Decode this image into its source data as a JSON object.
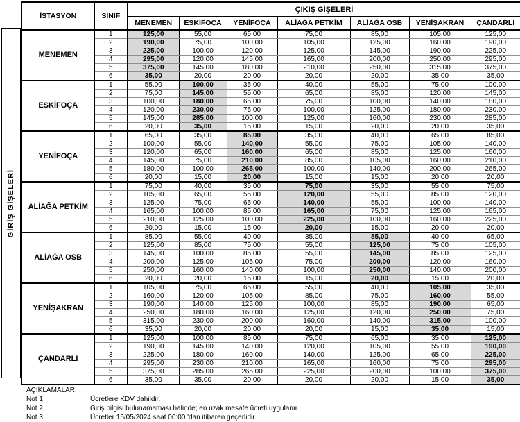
{
  "header": {
    "exit_gates_label": "ÇIKIŞ GİŞELERİ",
    "entry_gates_label": "GİRİŞ GİŞELERİ",
    "station_label": "İSTASYON",
    "class_label": "SINIF"
  },
  "columns": [
    "MENEMEN",
    "ESKİFOÇA",
    "YENİFOÇA",
    "ALİAĞA PETKİM",
    "ALİAĞA OSB",
    "YENİŞAKRAN",
    "ÇANDARLI"
  ],
  "class_labels": [
    "1",
    "2",
    "3",
    "4",
    "5",
    "6"
  ],
  "stations": [
    {
      "name": "MENEMEN",
      "fares": [
        [
          "125,00",
          "55,00",
          "65,00",
          "75,00",
          "85,00",
          "105,00",
          "125,00"
        ],
        [
          "190,00",
          "75,00",
          "100,00",
          "105,00",
          "125,00",
          "160,00",
          "190,00"
        ],
        [
          "225,00",
          "100,00",
          "120,00",
          "125,00",
          "145,00",
          "190,00",
          "225,00"
        ],
        [
          "295,00",
          "120,00",
          "145,00",
          "165,00",
          "200,00",
          "250,00",
          "295,00"
        ],
        [
          "375,00",
          "145,00",
          "180,00",
          "210,00",
          "250,00",
          "315,00",
          "375,00"
        ],
        [
          "35,00",
          "20,00",
          "20,00",
          "20,00",
          "20,00",
          "35,00",
          "35,00"
        ]
      ]
    },
    {
      "name": "ESKİFOÇA",
      "fares": [
        [
          "55,00",
          "100,00",
          "35,00",
          "40,00",
          "55,00",
          "75,00",
          "100,00"
        ],
        [
          "75,00",
          "145,00",
          "55,00",
          "65,00",
          "85,00",
          "120,00",
          "145,00"
        ],
        [
          "100,00",
          "180,00",
          "65,00",
          "75,00",
          "100,00",
          "140,00",
          "180,00"
        ],
        [
          "120,00",
          "230,00",
          "75,00",
          "100,00",
          "125,00",
          "180,00",
          "230,00"
        ],
        [
          "145,00",
          "285,00",
          "100,00",
          "125,00",
          "160,00",
          "230,00",
          "285,00"
        ],
        [
          "20,00",
          "35,00",
          "15,00",
          "15,00",
          "20,00",
          "20,00",
          "35,00"
        ]
      ]
    },
    {
      "name": "YENİFOÇA",
      "fares": [
        [
          "65,00",
          "35,00",
          "85,00",
          "35,00",
          "40,00",
          "65,00",
          "85,00"
        ],
        [
          "100,00",
          "55,00",
          "140,00",
          "55,00",
          "75,00",
          "105,00",
          "140,00"
        ],
        [
          "120,00",
          "65,00",
          "160,00",
          "65,00",
          "85,00",
          "125,00",
          "160,00"
        ],
        [
          "145,00",
          "75,00",
          "210,00",
          "85,00",
          "105,00",
          "160,00",
          "210,00"
        ],
        [
          "180,00",
          "100,00",
          "265,00",
          "100,00",
          "140,00",
          "200,00",
          "265,00"
        ],
        [
          "20,00",
          "15,00",
          "20,00",
          "15,00",
          "15,00",
          "20,00",
          "20,00"
        ]
      ]
    },
    {
      "name": "ALİAĞA\nPETKİM",
      "fares": [
        [
          "75,00",
          "40,00",
          "35,00",
          "75,00",
          "35,00",
          "55,00",
          "75,00"
        ],
        [
          "105,00",
          "65,00",
          "55,00",
          "120,00",
          "55,00",
          "85,00",
          "120,00"
        ],
        [
          "125,00",
          "75,00",
          "65,00",
          "140,00",
          "55,00",
          "100,00",
          "140,00"
        ],
        [
          "165,00",
          "100,00",
          "85,00",
          "165,00",
          "75,00",
          "125,00",
          "165,00"
        ],
        [
          "210,00",
          "125,00",
          "100,00",
          "225,00",
          "100,00",
          "160,00",
          "225,00"
        ],
        [
          "20,00",
          "15,00",
          "15,00",
          "20,00",
          "15,00",
          "20,00",
          "20,00"
        ]
      ]
    },
    {
      "name": "ALİAĞA OSB",
      "fares": [
        [
          "85,00",
          "55,00",
          "40,00",
          "35,00",
          "85,00",
          "40,00",
          "65,00"
        ],
        [
          "125,00",
          "85,00",
          "75,00",
          "55,00",
          "125,00",
          "75,00",
          "105,00"
        ],
        [
          "145,00",
          "100,00",
          "85,00",
          "55,00",
          "145,00",
          "85,00",
          "125,00"
        ],
        [
          "200,00",
          "125,00",
          "105,00",
          "75,00",
          "200,00",
          "120,00",
          "160,00"
        ],
        [
          "250,00",
          "160,00",
          "140,00",
          "100,00",
          "250,00",
          "140,00",
          "200,00"
        ],
        [
          "20,00",
          "20,00",
          "15,00",
          "15,00",
          "20,00",
          "15,00",
          "20,00"
        ]
      ]
    },
    {
      "name": "YENİŞAKRAN",
      "fares": [
        [
          "105,00",
          "75,00",
          "65,00",
          "55,00",
          "40,00",
          "105,00",
          "35,00"
        ],
        [
          "160,00",
          "120,00",
          "105,00",
          "85,00",
          "75,00",
          "160,00",
          "55,00"
        ],
        [
          "190,00",
          "140,00",
          "125,00",
          "100,00",
          "85,00",
          "190,00",
          "65,00"
        ],
        [
          "250,00",
          "180,00",
          "160,00",
          "125,00",
          "120,00",
          "250,00",
          "75,00"
        ],
        [
          "315,00",
          "230,00",
          "200,00",
          "160,00",
          "140,00",
          "315,00",
          "100,00"
        ],
        [
          "35,00",
          "20,00",
          "20,00",
          "20,00",
          "15,00",
          "35,00",
          "15,00"
        ]
      ]
    },
    {
      "name": "ÇANDARLI",
      "fares": [
        [
          "125,00",
          "100,00",
          "85,00",
          "75,00",
          "65,00",
          "35,00",
          "125,00"
        ],
        [
          "190,00",
          "145,00",
          "140,00",
          "120,00",
          "105,00",
          "55,00",
          "190,00"
        ],
        [
          "225,00",
          "180,00",
          "160,00",
          "140,00",
          "125,00",
          "65,00",
          "225,00"
        ],
        [
          "295,00",
          "230,00",
          "210,00",
          "165,00",
          "160,00",
          "75,00",
          "295,00"
        ],
        [
          "375,00",
          "285,00",
          "265,00",
          "225,00",
          "200,00",
          "100,00",
          "375,00"
        ],
        [
          "35,00",
          "35,00",
          "20,00",
          "20,00",
          "20,00",
          "15,00",
          "35,00"
        ]
      ]
    }
  ],
  "notes": {
    "title": "AÇIKLAMALAR:",
    "items": [
      {
        "label": "Not 1",
        "text": "Ücretlere KDV dahildir."
      },
      {
        "label": "Not 2",
        "text": "Giriş bilgisi bulunamaması halinde; en uzak mesafe ücreti uygulanır."
      },
      {
        "label": "Not 3",
        "text": "Ücretler 15/05/2024 saat 00:00 'dan itibaren geçerlidir."
      }
    ]
  },
  "colors": {
    "highlight": "#d8d8d8",
    "border": "#000000"
  }
}
